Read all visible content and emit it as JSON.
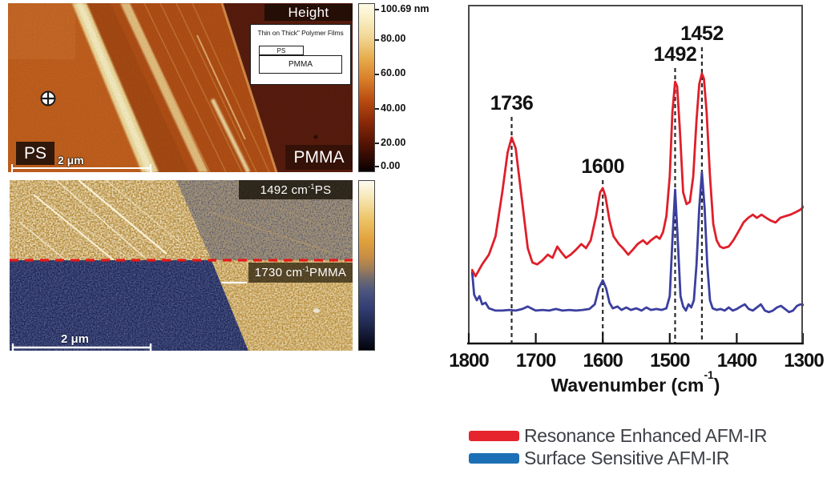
{
  "figure": {
    "height_panel": {
      "mode_label": "Height",
      "inset_title": "Thin on Thick\" Polymer Films",
      "inset_top_layer": "PS",
      "inset_bottom_layer": "PMMA",
      "left_region_label": "PS",
      "right_region_label": "PMMA",
      "scale_bar_label": "2 μm",
      "colorbar_labels": [
        "100.69 nm",
        "80.00",
        "60.00",
        "40.00",
        "20.00",
        "0.00"
      ]
    },
    "chemical_panel": {
      "ps_map_label": {
        "pre": "1492 cm",
        "sup": "-1",
        "post": " PS"
      },
      "pmma_map_label": {
        "pre": "1730 cm",
        "sup": "-1",
        "post": " PMMA"
      },
      "scale_bar_label": "2 μm"
    }
  },
  "chart_data": {
    "type": "line",
    "title": "",
    "xlabel": {
      "pre": "Wavenumber (cm",
      "sup": "-1",
      "post": ")"
    },
    "x_axis_reversed": true,
    "x_range": [
      1800,
      1300
    ],
    "x_ticks": [
      1800,
      1700,
      1600,
      1500,
      1400,
      1300
    ],
    "peak_annotations": [
      1736,
      1600,
      1492,
      1452
    ],
    "legend_position": "below",
    "grid": false,
    "series": [
      {
        "name": "Resonance Enhanced AFM-IR",
        "color": "#df1f2a",
        "x": [
          1795,
          1790,
          1780,
          1770,
          1760,
          1750,
          1742,
          1736,
          1730,
          1722,
          1712,
          1705,
          1698,
          1690,
          1682,
          1675,
          1668,
          1662,
          1655,
          1648,
          1640,
          1632,
          1625,
          1618,
          1610,
          1604,
          1600,
          1596,
          1590,
          1584,
          1576,
          1570,
          1562,
          1555,
          1548,
          1540,
          1534,
          1528,
          1520,
          1515,
          1510,
          1505,
          1500,
          1496,
          1492,
          1489,
          1485,
          1480,
          1475,
          1470,
          1465,
          1460,
          1456,
          1452,
          1449,
          1445,
          1440,
          1435,
          1430,
          1425,
          1420,
          1412,
          1405,
          1398,
          1390,
          1383,
          1376,
          1370,
          1363,
          1356,
          1350,
          1342,
          1335,
          1328,
          1320,
          1312,
          1305,
          1300
        ],
        "y": [
          23.8,
          21.8,
          25.6,
          28.7,
          34.6,
          48.7,
          61.5,
          66.2,
          62.8,
          48.7,
          30.8,
          26.2,
          25.6,
          26.9,
          28.7,
          27.7,
          31.3,
          29.5,
          27.7,
          28.7,
          30.3,
          32.1,
          30.8,
          33.3,
          41.0,
          48.7,
          50.0,
          47.4,
          39.7,
          34.6,
          32.1,
          30.8,
          28.7,
          30.3,
          32.1,
          33.3,
          32.1,
          33.3,
          34.6,
          33.8,
          35.9,
          41.0,
          53.8,
          74.4,
          84.1,
          82.6,
          69.2,
          48.7,
          44.9,
          45.6,
          53.8,
          71.8,
          83.3,
          86.7,
          85.1,
          74.4,
          53.8,
          38.5,
          33.3,
          31.3,
          30.8,
          31.3,
          33.3,
          35.9,
          39.0,
          40.5,
          41.5,
          40.5,
          41.5,
          40.5,
          39.7,
          39.0,
          40.5,
          41.0,
          41.5,
          42.3,
          43.1,
          44.1
        ]
      },
      {
        "name": "Surface Sensitive AFM-IR",
        "color": "#3b3f9f",
        "x": [
          1795,
          1792,
          1788,
          1784,
          1780,
          1775,
          1770,
          1760,
          1750,
          1740,
          1730,
          1720,
          1712,
          1705,
          1700,
          1690,
          1680,
          1670,
          1660,
          1650,
          1640,
          1630,
          1620,
          1612,
          1606,
          1600,
          1595,
          1590,
          1585,
          1578,
          1572,
          1565,
          1558,
          1550,
          1542,
          1535,
          1528,
          1520,
          1512,
          1505,
          1500,
          1496,
          1492,
          1488,
          1484,
          1480,
          1476,
          1472,
          1468,
          1464,
          1460,
          1456,
          1452,
          1448,
          1444,
          1440,
          1436,
          1430,
          1424,
          1418,
          1412,
          1406,
          1400,
          1394,
          1388,
          1382,
          1376,
          1370,
          1364,
          1358,
          1352,
          1346,
          1340,
          1334,
          1328,
          1322,
          1316,
          1310,
          1305,
          1300
        ],
        "y": [
          23.1,
          15.9,
          14.1,
          15.4,
          12.8,
          13.3,
          11.5,
          10.8,
          10.8,
          11.0,
          10.8,
          11.3,
          12.1,
          11.3,
          10.8,
          11.0,
          10.8,
          11.3,
          10.8,
          11.0,
          10.8,
          11.0,
          11.3,
          12.8,
          17.9,
          20.5,
          17.9,
          13.3,
          11.5,
          12.1,
          11.0,
          11.8,
          11.0,
          11.5,
          10.8,
          11.8,
          11.0,
          11.3,
          11.0,
          11.5,
          15.4,
          33.3,
          49.5,
          33.3,
          15.4,
          12.1,
          10.8,
          12.8,
          11.8,
          14.1,
          25.6,
          43.6,
          55.1,
          43.6,
          25.6,
          14.1,
          11.5,
          11.0,
          11.3,
          10.8,
          11.8,
          10.8,
          11.3,
          12.1,
          12.8,
          11.3,
          10.8,
          11.8,
          12.8,
          10.8,
          10.3,
          10.8,
          11.8,
          12.3,
          11.3,
          10.3,
          10.8,
          12.3,
          12.8,
          12.6
        ]
      }
    ]
  },
  "legend": {
    "items": [
      {
        "label": "Resonance Enhanced AFM-IR",
        "color": "#e5242e"
      },
      {
        "label": "Surface Sensitive AFM-IR",
        "color": "#1d70b5"
      }
    ]
  }
}
